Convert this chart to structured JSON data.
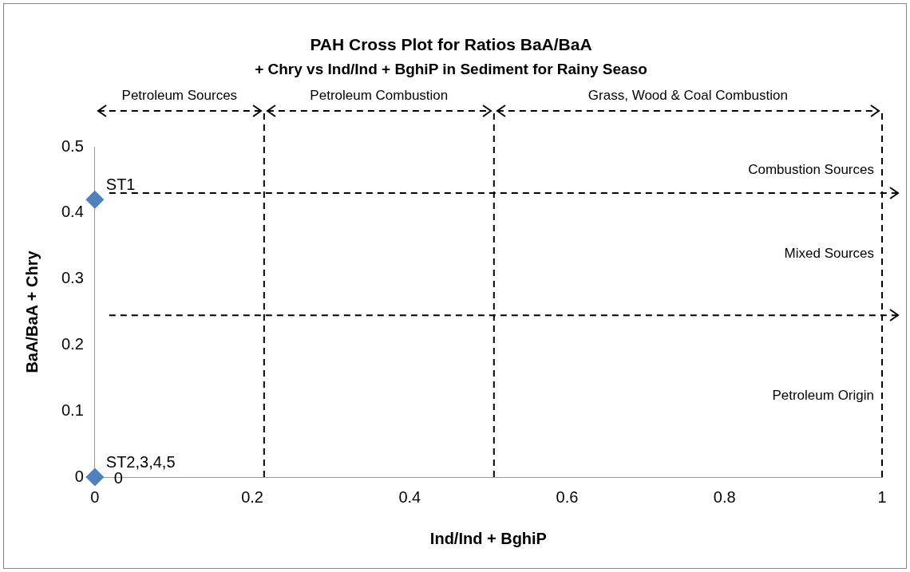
{
  "chart_data": {
    "type": "scatter",
    "title": "PAH Cross Plot for Ratios BaA/BaA",
    "subtitle": "+ Chry vs Ind/Ind + BghiP in Sediment for Rainy Seaso",
    "xlabel": "Ind/Ind + BghiP",
    "ylabel": "BaA/BaA + Chry",
    "series": [
      {
        "color": "#4f81bd",
        "x": [
          0,
          0
        ],
        "values": [
          0.42,
          0
        ],
        "value_labels": [
          "ST1",
          "ST2,3,4,5"
        ]
      }
    ],
    "marker": "diamond",
    "legend": false,
    "grid": false,
    "xlim": [
      0,
      1
    ],
    "xticks": [
      0,
      0.2,
      0.4,
      0.6,
      0.8,
      1
    ],
    "ylim": [
      0,
      0.5
    ],
    "yticks": [
      0,
      0.1,
      0.2,
      0.3,
      0.4,
      0.5
    ],
    "ref_lines": [
      {
        "axis": "x",
        "value": 0.215,
        "line_style": "dashed"
      },
      {
        "axis": "x",
        "value": 0.507,
        "line_style": "dashed"
      },
      {
        "axis": "x",
        "value": 1,
        "line_style": "dashed"
      },
      {
        "axis": "y",
        "value": 0.43,
        "line_style": "dashed"
      },
      {
        "axis": "y",
        "value": 0.245,
        "line_style": "dashed"
      }
    ],
    "annotations": [
      "Petroleum Sources",
      "Petroleum Combustion",
      "Grass, Wood & Coal Combustion",
      "Combustion Sources",
      "Mixed Sources",
      "Petroleum Origin",
      {
        "text": "0",
        "x": 0,
        "y": 0
      }
    ]
  }
}
